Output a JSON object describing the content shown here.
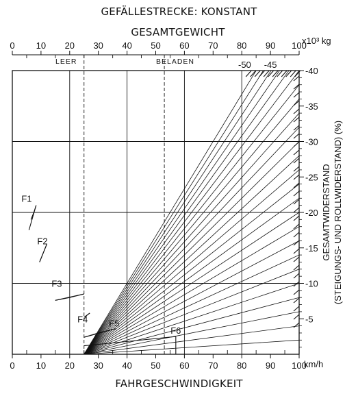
{
  "chart_data": {
    "type": "line",
    "title": "GEFÄLLESTRECKE: KONSTANT",
    "xlabel": "FAHRGESCHWINDIGKEIT",
    "x_unit": "km/h",
    "xlim": [
      0,
      100
    ],
    "x_ticks": [
      "0",
      "10",
      "20",
      "30",
      "40",
      "50",
      "60",
      "70",
      "80",
      "90",
      "100"
    ],
    "top_axis": {
      "label": "GESAMTGEWICHT",
      "unit": "x10³ kg",
      "range": [
        0,
        100
      ],
      "ticks": [
        "0",
        "10",
        "20",
        "30",
        "40",
        "50",
        "60",
        "70",
        "80",
        "90",
        "100"
      ]
    },
    "ylabel_lines": [
      "GESAMTWIDERSTAND",
      "(STEIGUNGS- UND ROLLWIDERSTAND) (%)"
    ],
    "ylim": [
      0,
      -40
    ],
    "y_ticks": [
      "-5",
      "-10",
      "-15",
      "-20",
      "-25",
      "-30",
      "-35",
      "-40"
    ],
    "top_right_labels": [
      {
        "text": "-50",
        "weight": 81
      },
      {
        "text": "-45",
        "weight": 90
      }
    ],
    "weight_markers": [
      {
        "text": "LEER",
        "weight": 25
      },
      {
        "text": "BELADEN",
        "weight": 53
      }
    ],
    "resistance_lines": [
      -2,
      -4,
      -6,
      -8,
      -10,
      -12,
      -14,
      -16,
      -18,
      -20,
      -22,
      -24,
      -26,
      -28,
      -30,
      -32,
      -34,
      -36,
      -38,
      -40,
      -42,
      -44,
      -46,
      -48,
      -50
    ],
    "gears": [
      {
        "name": "F1",
        "x": [
          6.5,
          7.5,
          8.3
        ],
        "y": [
          -19,
          -20,
          -21
        ],
        "label_at": [
          5,
          -21.5
        ]
      },
      {
        "name": "F2",
        "x": [
          9.5,
          10.5,
          12
        ],
        "y": [
          -13,
          -14,
          -15.5
        ],
        "label_at": [
          10.5,
          -15.5
        ]
      },
      {
        "name": "F3",
        "x": [
          15,
          20,
          25
        ],
        "y": [
          -7.6,
          -8.0,
          -8.5
        ],
        "label_at": [
          15.5,
          -9.5
        ]
      },
      {
        "name": "F4",
        "x": [
          25,
          27
        ],
        "y": [
          -5.2,
          -5.8
        ],
        "label_at": [
          24.5,
          -4.5
        ]
      },
      {
        "name": "F5",
        "x": [
          25,
          30,
          36
        ],
        "y": [
          -2.4,
          -3.0,
          -3.6
        ],
        "label_at": [
          35.5,
          -3.9
        ]
      },
      {
        "name": "F6",
        "x": [
          25,
          40,
          57
        ],
        "y": [
          -1.2,
          -1.8,
          -2.5
        ],
        "label_at": [
          57,
          -2.9
        ]
      }
    ],
    "gear_drops": [
      [
        8.3,
        -21,
        5.8,
        -17.5
      ],
      [
        12,
        -15.5,
        9.5,
        -13
      ],
      [
        25,
        -8.5,
        15,
        -7.6
      ],
      [
        27,
        -5.8,
        25,
        -5.2
      ],
      [
        36,
        -3.6,
        25,
        -2.4
      ],
      [
        57,
        -2.5,
        57,
        0
      ]
    ],
    "grid": true,
    "legend": "none"
  }
}
